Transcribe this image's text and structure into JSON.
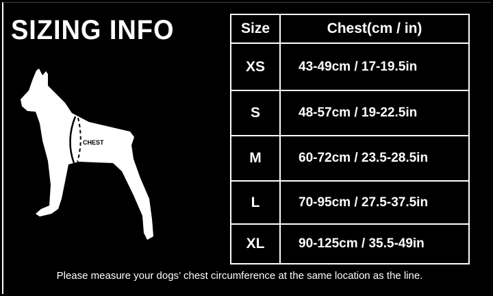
{
  "title": "SIZING INFO",
  "dog_label": "CHEST",
  "table": {
    "headers": [
      "Size",
      "Chest(cm / in)"
    ],
    "rows": [
      {
        "size": "XS",
        "chest": "43-49cm / 17-19.5in"
      },
      {
        "size": "S",
        "chest": "48-57cm / 19-22.5in"
      },
      {
        "size": "M",
        "chest": "60-72cm / 23.5-28.5in"
      },
      {
        "size": "L",
        "chest": "70-95cm / 27.5-37.5in"
      },
      {
        "size": "XL",
        "chest": "90-125cm / 35.5-49in"
      }
    ]
  },
  "note": "Please measure your dogs’  chest circumference at the same location as the line."
}
